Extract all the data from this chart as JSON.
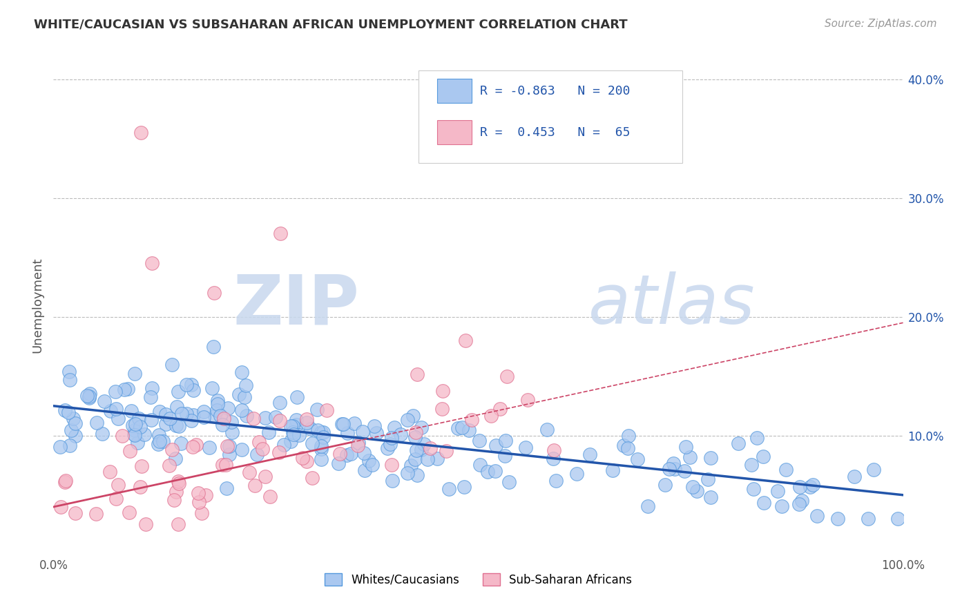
{
  "title": "WHITE/CAUCASIAN VS SUBSAHARAN AFRICAN UNEMPLOYMENT CORRELATION CHART",
  "source": "Source: ZipAtlas.com",
  "ylabel": "Unemployment",
  "blue_R": -0.863,
  "blue_N": 200,
  "pink_R": 0.453,
  "pink_N": 65,
  "blue_fill": "#aac8f0",
  "blue_edge": "#5599dd",
  "pink_fill": "#f5b8c8",
  "pink_edge": "#e07090",
  "blue_line_color": "#2255aa",
  "pink_line_color": "#cc4466",
  "background_color": "#ffffff",
  "grid_color": "#bbbbbb",
  "watermark_color": "#d0ddf0",
  "legend_labels": [
    "Whites/Caucasians",
    "Sub-Saharan Africans"
  ],
  "xlim": [
    0.0,
    1.0
  ],
  "ylim": [
    0.0,
    0.42
  ],
  "right_yticks": [
    0.1,
    0.2,
    0.3,
    0.4
  ],
  "right_yticklabels": [
    "10.0%",
    "20.0%",
    "30.0%",
    "40.0%"
  ],
  "blue_intercept": 0.125,
  "blue_slope": -0.075,
  "pink_intercept": 0.04,
  "pink_slope": 0.155
}
